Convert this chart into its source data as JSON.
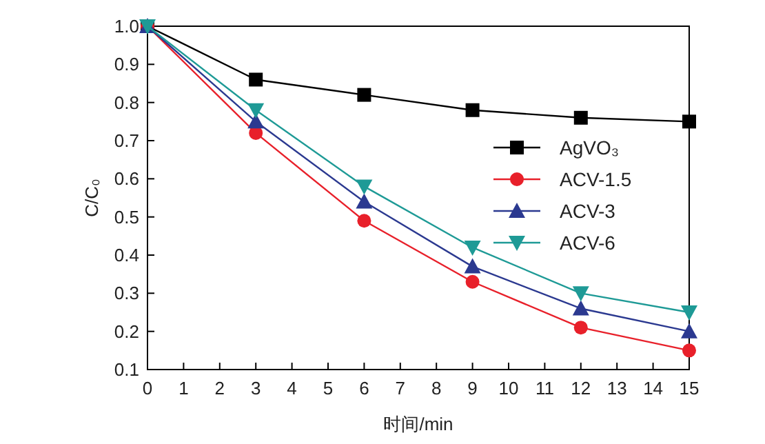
{
  "chart_data": {
    "type": "line",
    "xlabel": "时间/min",
    "ylabel": "C/C₀",
    "x": [
      0,
      3,
      6,
      9,
      12,
      15
    ],
    "series": [
      {
        "name": "AgVO₃",
        "color": "#000000",
        "marker": "square",
        "values": [
          1.0,
          0.86,
          0.82,
          0.78,
          0.76,
          0.75
        ]
      },
      {
        "name": "ACV-1.5",
        "color": "#e8202a",
        "marker": "circle",
        "values": [
          1.0,
          0.72,
          0.49,
          0.33,
          0.21,
          0.15
        ]
      },
      {
        "name": "ACV-3",
        "color": "#2b3990",
        "marker": "triangle",
        "values": [
          1.0,
          0.75,
          0.54,
          0.37,
          0.26,
          0.2
        ]
      },
      {
        "name": "ACV-6",
        "color": "#1e9a96",
        "marker": "triangle_down",
        "values": [
          1.0,
          0.78,
          0.58,
          0.42,
          0.3,
          0.25
        ]
      }
    ],
    "xlim": [
      0,
      15
    ],
    "xticks": [
      0,
      1,
      2,
      3,
      4,
      5,
      6,
      7,
      8,
      9,
      10,
      11,
      12,
      13,
      14,
      15
    ],
    "ylim": [
      0.1,
      1.0
    ],
    "yticks": [
      {
        "value": 0.1,
        "label": "0.1"
      },
      {
        "value": 0.2,
        "label": "0.2"
      },
      {
        "value": 0.3,
        "label": "0.3"
      },
      {
        "value": 0.4,
        "label": "0.4"
      },
      {
        "value": 0.5,
        "label": "0.5"
      },
      {
        "value": 0.6,
        "label": "0.6"
      },
      {
        "value": 0.7,
        "label": "0.7"
      },
      {
        "value": 0.8,
        "label": "0.8"
      },
      {
        "value": 0.9,
        "label": "0.9"
      },
      {
        "value": 1.0,
        "label": "1.0"
      }
    ],
    "grid": false,
    "legend": "right",
    "line_style": "solid"
  }
}
